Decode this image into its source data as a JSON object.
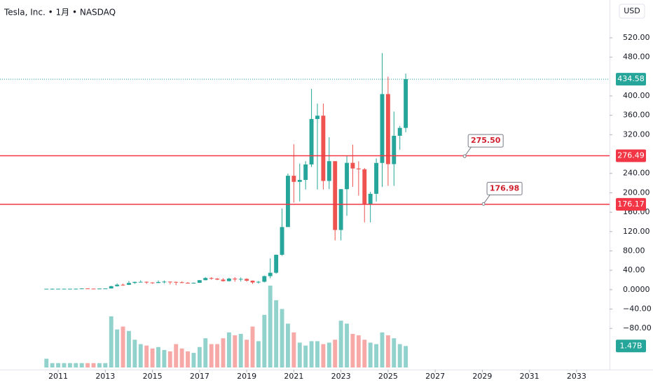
{
  "chart_data": {
    "type": "candlestick",
    "title": "Tesla, Inc. • 1月 • NASDAQ",
    "currency": "USD",
    "x": [
      2010.5,
      2010.75,
      2011,
      2011.25,
      2011.5,
      2011.75,
      2012,
      2012.25,
      2012.5,
      2012.75,
      2013,
      2013.25,
      2013.5,
      2013.75,
      2014,
      2014.25,
      2014.5,
      2014.75,
      2015,
      2015.25,
      2015.5,
      2015.75,
      2016,
      2016.25,
      2016.5,
      2016.75,
      2017,
      2017.25,
      2017.5,
      2017.75,
      2018,
      2018.25,
      2018.5,
      2018.75,
      2019,
      2019.25,
      2019.5,
      2019.75,
      2020,
      2020.25,
      2020.5,
      2020.75,
      2021,
      2021.25,
      2021.5,
      2021.75,
      2022,
      2022.25,
      2022.5,
      2022.75,
      2023,
      2023.25,
      2023.5,
      2023.75,
      2024,
      2024.25,
      2024.5,
      2024.75,
      2025,
      2025.25,
      2025.5,
      2025.75
    ],
    "open": [
      1.3,
      1.8,
      1.8,
      1.9,
      1.9,
      1.9,
      1.9,
      2.5,
      2.1,
      1.9,
      2.3,
      2.5,
      7.2,
      10.3,
      10,
      13.9,
      16,
      16.2,
      14.8,
      13.8,
      15.8,
      16.6,
      16,
      15.3,
      14.2,
      13.6,
      14.2,
      19.6,
      24.1,
      22.7,
      20.8,
      17.7,
      22.9,
      21.2,
      22.2,
      18.6,
      14.9,
      16.3,
      27.9,
      34.9,
      72,
      129.3,
      235.2,
      222.6,
      226.6,
      258.5,
      352.3,
      359.2,
      224.5,
      265.3,
      123.2,
      207.5,
      261.8,
      250.2,
      248.5,
      175.8,
      197.9,
      261.6,
      403.8,
      259.2,
      317.7,
      334
    ],
    "high": [
      1.8,
      2.4,
      2,
      2,
      2,
      2.3,
      2.5,
      2.6,
      2.3,
      2.4,
      2.6,
      8,
      12.9,
      12.5,
      18,
      16.5,
      19.4,
      16.8,
      15.2,
      19,
      19,
      16.6,
      16.7,
      17.2,
      15.7,
      14.6,
      19.8,
      26,
      25.9,
      24.2,
      23.9,
      24.7,
      25.8,
      25.1,
      23.5,
      19,
      18,
      29,
      64.6,
      72.8,
      167.5,
      239.6,
      300.1,
      260.3,
      265.2,
      414.5,
      384.3,
      384.3,
      314.7,
      265.3,
      207.8,
      276.5,
      299.3,
      265.1,
      251.3,
      202,
      271,
      488.5,
      439.7,
      367.7,
      338,
      446
    ],
    "low": [
      1.1,
      1.4,
      1.5,
      1.6,
      1.5,
      1.8,
      1.5,
      1.9,
      1.8,
      1.9,
      2.2,
      2.5,
      6.5,
      8,
      9.5,
      11.9,
      15,
      12,
      12.1,
      13.5,
      13,
      11,
      9.4,
      13.6,
      13.4,
      12.5,
      14,
      19.2,
      20.6,
      19.6,
      16.8,
      16.7,
      16.5,
      16.9,
      16.6,
      11.8,
      12.4,
      15,
      23.4,
      33.1,
      70,
      130,
      179.8,
      182.3,
      206.8,
      253.3,
      206.9,
      206.9,
      207.7,
      101.8,
      101.8,
      152.4,
      212.4,
      194.1,
      138.8,
      138.8,
      182,
      212.1,
      214.3,
      214.3,
      288.8,
      325
    ],
    "close": [
      1.8,
      1.8,
      1.9,
      1.9,
      1.9,
      1.9,
      2.5,
      2.1,
      1.9,
      2.3,
      2.5,
      7.2,
      10.3,
      10,
      13.9,
      16,
      16.2,
      14.8,
      13.8,
      15.8,
      16.6,
      16,
      15.3,
      14.2,
      13.6,
      14.2,
      19.6,
      24.1,
      22.7,
      20.8,
      17.7,
      22.9,
      21.2,
      22.2,
      18.6,
      14.9,
      16.3,
      27.9,
      34.9,
      72,
      129.3,
      235.2,
      222.6,
      226.6,
      258.5,
      352.3,
      359.2,
      224.5,
      265.3,
      123.2,
      207.5,
      261.8,
      250.2,
      248.5,
      175.8,
      197.9,
      261.6,
      403.8,
      259.2,
      317.7,
      334,
      434.58
    ],
    "up_color": "#26a69a",
    "down_color": "#ef5350",
    "volume": {
      "values": [
        0.6,
        0.3,
        0.3,
        0.3,
        0.3,
        0.3,
        0.3,
        0.3,
        0.3,
        0.3,
        0.3,
        3.5,
        2.6,
        2.8,
        2.5,
        1.9,
        1.6,
        1.5,
        1.3,
        1.4,
        1.2,
        1.1,
        1.6,
        1.3,
        1.1,
        1,
        1.4,
        2,
        1.6,
        1.6,
        2,
        2.4,
        2.2,
        2.3,
        1.9,
        2.8,
        1.8,
        3.6,
        5.6,
        4.6,
        4,
        3,
        2.4,
        1.7,
        1.5,
        1.8,
        1.8,
        1.6,
        1.7,
        1.9,
        3.2,
        3,
        2.3,
        2.2,
        1.9,
        1.7,
        1.6,
        2.4,
        2.2,
        2,
        1.6,
        1.47
      ],
      "last_label": "1.47B"
    },
    "xlim": [
      2008.53,
      2034.4
    ],
    "xticks": [
      2011,
      2013,
      2015,
      2017,
      2019,
      2021,
      2023,
      2025,
      2027,
      2029,
      2031,
      2033
    ],
    "ylim": [
      -165,
      598
    ],
    "yticks": [
      {
        "value": 520,
        "label": "520.00"
      },
      {
        "value": 480,
        "label": "480.00"
      },
      {
        "value": 400,
        "label": "400.00"
      },
      {
        "value": 360,
        "label": "360.00"
      },
      {
        "value": 320,
        "label": "320.00"
      },
      {
        "value": 240,
        "label": "240.00"
      },
      {
        "value": 200,
        "label": "200.00"
      },
      {
        "value": 160,
        "label": "160.00"
      },
      {
        "value": 120,
        "label": "120.00"
      },
      {
        "value": 80,
        "label": "80.00"
      },
      {
        "value": 40,
        "label": "40.00"
      },
      {
        "value": 0,
        "label": "0.0000"
      },
      {
        "value": -40,
        "label": "−40.00"
      },
      {
        "value": -80,
        "label": "−80.00"
      }
    ],
    "hlines": [
      {
        "value": 276.49,
        "color": "#f23645"
      },
      {
        "value": 176.17,
        "color": "#f23645"
      }
    ],
    "annotations": [
      {
        "x": 2028.25,
        "value": 275.5,
        "label": "275.50"
      },
      {
        "x": 2029.05,
        "value": 176.98,
        "label": "176.98"
      }
    ]
  }
}
